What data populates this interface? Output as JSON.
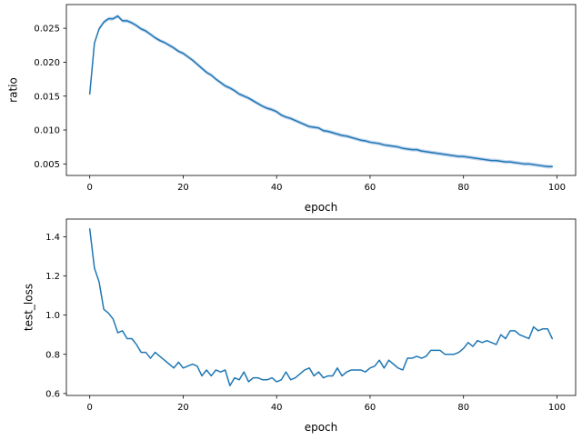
{
  "chart_data": [
    {
      "type": "line",
      "xlabel": "epoch",
      "ylabel": "ratio",
      "xlim": [
        -5,
        104
      ],
      "ylim": [
        0.0033,
        0.0285
      ],
      "xticks": [
        0,
        20,
        40,
        60,
        80,
        100
      ],
      "xtick_labels": [
        "0",
        "20",
        "40",
        "60",
        "80",
        "100"
      ],
      "yticks": [
        0.005,
        0.01,
        0.015,
        0.02,
        0.025
      ],
      "ytick_labels": [
        "0.005",
        "0.010",
        "0.015",
        "0.020",
        "0.025"
      ],
      "grid": false,
      "color": "#1f77b4",
      "band_color": "#aec7e8",
      "band_halfwidth": 0.00028,
      "x": [
        0,
        1,
        2,
        3,
        4,
        5,
        6,
        7,
        8,
        9,
        10,
        11,
        12,
        13,
        14,
        15,
        16,
        17,
        18,
        19,
        20,
        21,
        22,
        23,
        24,
        25,
        26,
        27,
        28,
        29,
        30,
        31,
        32,
        33,
        34,
        35,
        36,
        37,
        38,
        39,
        40,
        41,
        42,
        43,
        44,
        45,
        46,
        47,
        48,
        49,
        50,
        51,
        52,
        53,
        54,
        55,
        56,
        57,
        58,
        59,
        60,
        61,
        62,
        63,
        64,
        65,
        66,
        67,
        68,
        69,
        70,
        71,
        72,
        73,
        74,
        75,
        76,
        77,
        78,
        79,
        80,
        81,
        82,
        83,
        84,
        85,
        86,
        87,
        88,
        89,
        90,
        91,
        92,
        93,
        94,
        95,
        96,
        97,
        98,
        99
      ],
      "y": [
        0.0153,
        0.0228,
        0.0249,
        0.0259,
        0.0264,
        0.0264,
        0.0268,
        0.0261,
        0.0261,
        0.0258,
        0.0254,
        0.0249,
        0.0246,
        0.0241,
        0.0236,
        0.0232,
        0.0229,
        0.0225,
        0.0221,
        0.0216,
        0.0213,
        0.0208,
        0.0203,
        0.0197,
        0.0191,
        0.0185,
        0.0181,
        0.0175,
        0.017,
        0.0165,
        0.0162,
        0.0158,
        0.0153,
        0.015,
        0.0147,
        0.0143,
        0.0139,
        0.0135,
        0.0132,
        0.013,
        0.0127,
        0.0122,
        0.0119,
        0.0117,
        0.0114,
        0.0111,
        0.0108,
        0.0105,
        0.0104,
        0.0103,
        0.0099,
        0.0098,
        0.0096,
        0.0094,
        0.0092,
        0.0091,
        0.0089,
        0.0087,
        0.0085,
        0.0084,
        0.0082,
        0.0081,
        0.008,
        0.0078,
        0.0077,
        0.0076,
        0.0075,
        0.0073,
        0.0072,
        0.0071,
        0.0071,
        0.0069,
        0.0068,
        0.0067,
        0.0066,
        0.0065,
        0.0064,
        0.0063,
        0.0062,
        0.0061,
        0.0061,
        0.006,
        0.0059,
        0.0058,
        0.0057,
        0.0056,
        0.0055,
        0.0055,
        0.0054,
        0.0053,
        0.0053,
        0.0052,
        0.0051,
        0.005,
        0.005,
        0.0049,
        0.0048,
        0.0047,
        0.0046,
        0.0046
      ]
    },
    {
      "type": "line",
      "xlabel": "epoch",
      "ylabel": "test_loss",
      "xlim": [
        -5,
        104
      ],
      "ylim": [
        0.59,
        1.49
      ],
      "xticks": [
        0,
        20,
        40,
        60,
        80,
        100
      ],
      "xtick_labels": [
        "0",
        "20",
        "40",
        "60",
        "80",
        "100"
      ],
      "yticks": [
        0.6,
        0.8,
        1.0,
        1.2,
        1.4
      ],
      "ytick_labels": [
        "0.6",
        "0.8",
        "1.0",
        "1.2",
        "1.4"
      ],
      "grid": false,
      "color": "#1f77b4",
      "x": [
        0,
        1,
        2,
        3,
        4,
        5,
        6,
        7,
        8,
        9,
        10,
        11,
        12,
        13,
        14,
        15,
        16,
        17,
        18,
        19,
        20,
        21,
        22,
        23,
        24,
        25,
        26,
        27,
        28,
        29,
        30,
        31,
        32,
        33,
        34,
        35,
        36,
        37,
        38,
        39,
        40,
        41,
        42,
        43,
        44,
        45,
        46,
        47,
        48,
        49,
        50,
        51,
        52,
        53,
        54,
        55,
        56,
        57,
        58,
        59,
        60,
        61,
        62,
        63,
        64,
        65,
        66,
        67,
        68,
        69,
        70,
        71,
        72,
        73,
        74,
        75,
        76,
        77,
        78,
        79,
        80,
        81,
        82,
        83,
        84,
        85,
        86,
        87,
        88,
        89,
        90,
        91,
        92,
        93,
        94,
        95,
        96,
        97,
        98,
        99
      ],
      "y": [
        1.44,
        1.24,
        1.17,
        1.03,
        1.01,
        0.98,
        0.91,
        0.92,
        0.88,
        0.88,
        0.85,
        0.81,
        0.81,
        0.78,
        0.81,
        0.79,
        0.77,
        0.75,
        0.73,
        0.76,
        0.73,
        0.74,
        0.75,
        0.74,
        0.69,
        0.72,
        0.69,
        0.72,
        0.71,
        0.72,
        0.64,
        0.68,
        0.67,
        0.71,
        0.66,
        0.68,
        0.68,
        0.67,
        0.67,
        0.68,
        0.66,
        0.67,
        0.71,
        0.67,
        0.68,
        0.7,
        0.72,
        0.73,
        0.69,
        0.71,
        0.68,
        0.69,
        0.69,
        0.73,
        0.69,
        0.71,
        0.72,
        0.72,
        0.72,
        0.71,
        0.73,
        0.74,
        0.77,
        0.73,
        0.77,
        0.75,
        0.73,
        0.72,
        0.78,
        0.78,
        0.79,
        0.78,
        0.79,
        0.82,
        0.82,
        0.82,
        0.8,
        0.8,
        0.8,
        0.81,
        0.83,
        0.86,
        0.84,
        0.87,
        0.86,
        0.87,
        0.86,
        0.85,
        0.9,
        0.88,
        0.92,
        0.92,
        0.9,
        0.89,
        0.88,
        0.94,
        0.92,
        0.93,
        0.93,
        0.88
      ]
    }
  ]
}
